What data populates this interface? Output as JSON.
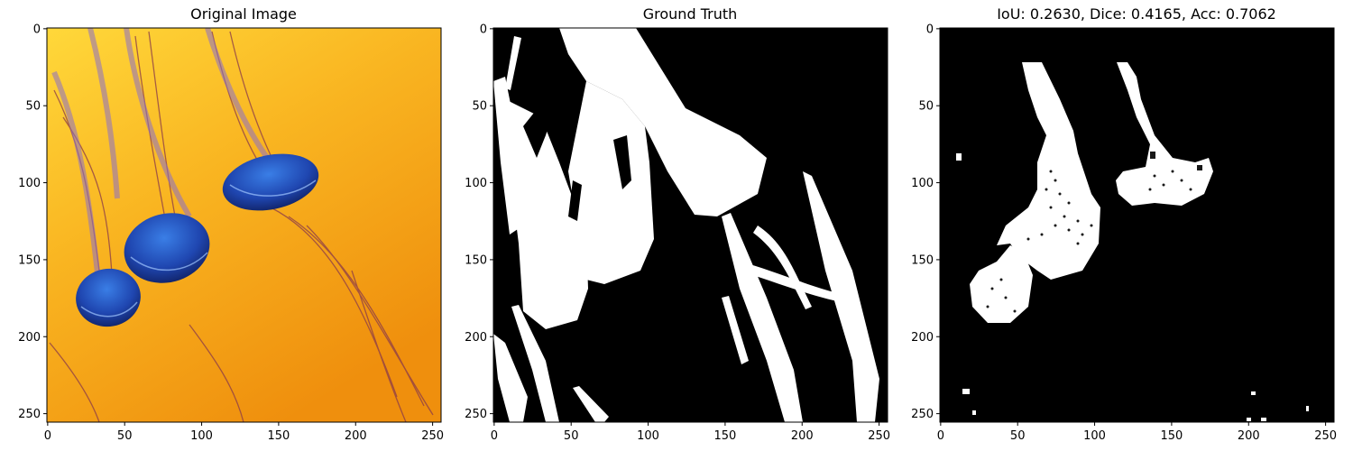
{
  "panels": [
    {
      "title": "Original Image",
      "x_ticks": [
        "0",
        "50",
        "100",
        "150",
        "200",
        "250"
      ],
      "y_ticks": [
        "0",
        "50",
        "100",
        "150",
        "200",
        "250"
      ],
      "content": "photo"
    },
    {
      "title": "Ground Truth",
      "x_ticks": [
        "0",
        "50",
        "100",
        "150",
        "200",
        "250"
      ],
      "y_ticks": [
        "0",
        "50",
        "100",
        "150",
        "200",
        "250"
      ],
      "content": "mask"
    },
    {
      "title": "IoU: 0.2630, Dice: 0.4165, Acc: 0.7062",
      "x_ticks": [
        "0",
        "50",
        "100",
        "150",
        "200",
        "250"
      ],
      "y_ticks": [
        "0",
        "50",
        "100",
        "150",
        "200",
        "250"
      ],
      "content": "prediction"
    }
  ],
  "metrics": {
    "iou": 0.263,
    "dice": 0.4165,
    "acc": 0.7062
  },
  "colors": {
    "mask_fg": "#ffffff",
    "mask_bg": "#000000",
    "photo_bg": "#f5a623",
    "jelly": "#2a4fb8"
  }
}
